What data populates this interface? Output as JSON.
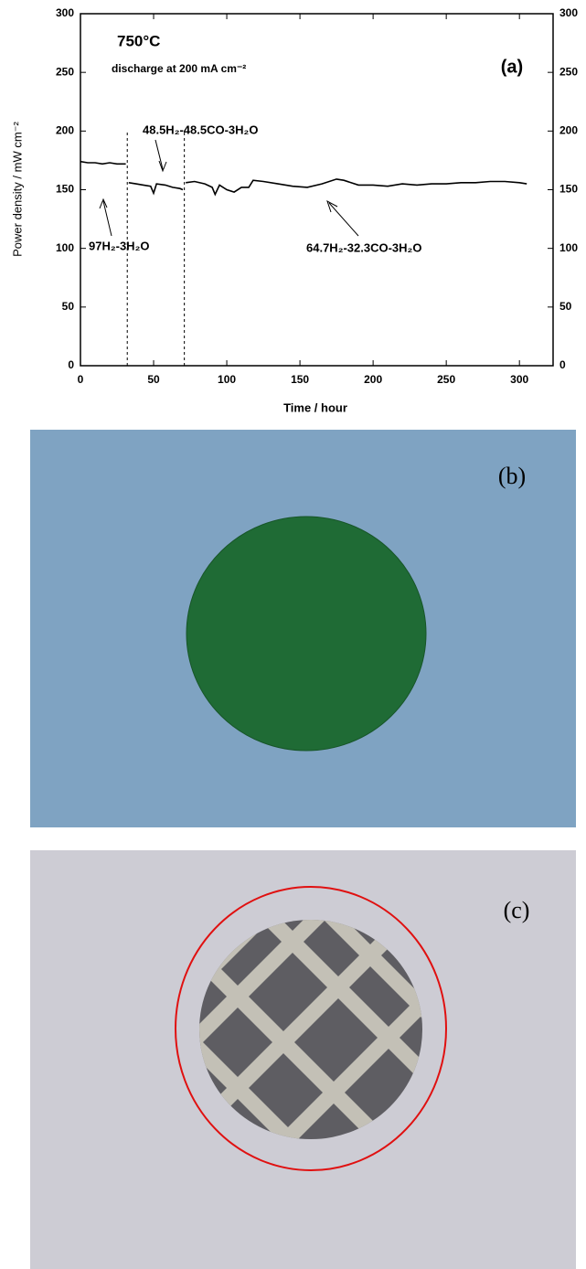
{
  "chart_data": {
    "type": "line",
    "panel_label": "(a)",
    "annotations": [
      "750°C",
      "discharge at 200 mA cm⁻²",
      "48.5H₂-48.5CO-3H₂O",
      "97H₂-3H₂O",
      "64.7H₂-32.3CO-3H₂O"
    ],
    "x_label": "Time / hour",
    "y_label": "Power density / mW cm⁻²",
    "xlim": [
      0,
      323
    ],
    "xticks": [
      0,
      50,
      100,
      150,
      200,
      250,
      300
    ],
    "ylim": [
      0,
      300
    ],
    "yticks": [
      0,
      50,
      100,
      150,
      200,
      250,
      300
    ],
    "vlines": [
      32,
      71
    ],
    "series": [
      {
        "color": "#000000",
        "x": [
          0,
          5,
          10,
          15,
          20,
          25,
          31,
          32,
          33,
          38,
          43,
          48,
          50,
          52,
          58,
          63,
          68,
          70,
          71,
          72,
          78,
          85,
          90,
          92,
          95,
          100,
          105,
          110,
          115,
          118,
          125,
          135,
          145,
          155,
          165,
          175,
          180,
          190,
          200,
          210,
          220,
          230,
          240,
          250,
          260,
          270,
          280,
          290,
          300,
          305
        ],
        "values": [
          174,
          173,
          173,
          172,
          173,
          172,
          172,
          null,
          156,
          155,
          154,
          153,
          147,
          155,
          154,
          152,
          151,
          150,
          null,
          156,
          157,
          155,
          152,
          146,
          154,
          150,
          148,
          152,
          152,
          158,
          157,
          155,
          153,
          152,
          155,
          159,
          158,
          154,
          154,
          153,
          155,
          154,
          155,
          155,
          156,
          156,
          157,
          157,
          156,
          155
        ]
      }
    ]
  },
  "photos": [
    "(b)",
    "(c)"
  ]
}
